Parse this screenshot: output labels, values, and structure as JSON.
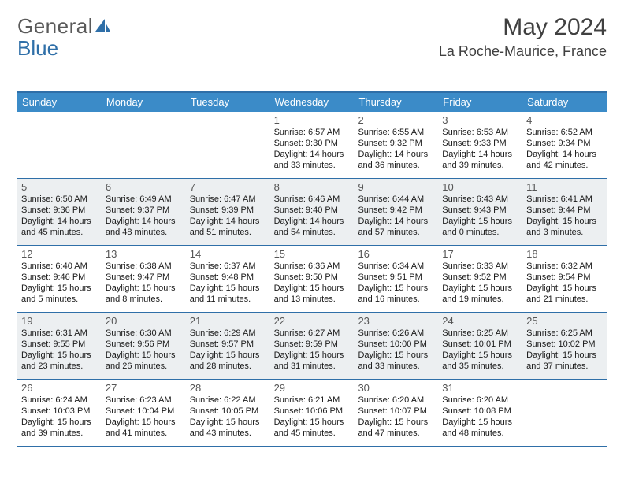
{
  "brand": {
    "part1": "General",
    "part2": "Blue"
  },
  "title": "May 2024",
  "location": "La Roche-Maurice, France",
  "colors": {
    "header_bg": "#3b8bc8",
    "border": "#2f6fa8",
    "shaded": "#eceff1",
    "text": "#1a1a1a",
    "daynum": "#555555",
    "brand_gray": "#5a5a5a",
    "brand_blue": "#2f6fa8"
  },
  "dow": [
    "Sunday",
    "Monday",
    "Tuesday",
    "Wednesday",
    "Thursday",
    "Friday",
    "Saturday"
  ],
  "weeks": [
    [
      {
        "n": "",
        "sr": "",
        "ss": "",
        "dl": ""
      },
      {
        "n": "",
        "sr": "",
        "ss": "",
        "dl": ""
      },
      {
        "n": "",
        "sr": "",
        "ss": "",
        "dl": ""
      },
      {
        "n": "1",
        "sr": "Sunrise: 6:57 AM",
        "ss": "Sunset: 9:30 PM",
        "dl": "Daylight: 14 hours and 33 minutes."
      },
      {
        "n": "2",
        "sr": "Sunrise: 6:55 AM",
        "ss": "Sunset: 9:32 PM",
        "dl": "Daylight: 14 hours and 36 minutes."
      },
      {
        "n": "3",
        "sr": "Sunrise: 6:53 AM",
        "ss": "Sunset: 9:33 PM",
        "dl": "Daylight: 14 hours and 39 minutes."
      },
      {
        "n": "4",
        "sr": "Sunrise: 6:52 AM",
        "ss": "Sunset: 9:34 PM",
        "dl": "Daylight: 14 hours and 42 minutes."
      }
    ],
    [
      {
        "n": "5",
        "sr": "Sunrise: 6:50 AM",
        "ss": "Sunset: 9:36 PM",
        "dl": "Daylight: 14 hours and 45 minutes."
      },
      {
        "n": "6",
        "sr": "Sunrise: 6:49 AM",
        "ss": "Sunset: 9:37 PM",
        "dl": "Daylight: 14 hours and 48 minutes."
      },
      {
        "n": "7",
        "sr": "Sunrise: 6:47 AM",
        "ss": "Sunset: 9:39 PM",
        "dl": "Daylight: 14 hours and 51 minutes."
      },
      {
        "n": "8",
        "sr": "Sunrise: 6:46 AM",
        "ss": "Sunset: 9:40 PM",
        "dl": "Daylight: 14 hours and 54 minutes."
      },
      {
        "n": "9",
        "sr": "Sunrise: 6:44 AM",
        "ss": "Sunset: 9:42 PM",
        "dl": "Daylight: 14 hours and 57 minutes."
      },
      {
        "n": "10",
        "sr": "Sunrise: 6:43 AM",
        "ss": "Sunset: 9:43 PM",
        "dl": "Daylight: 15 hours and 0 minutes."
      },
      {
        "n": "11",
        "sr": "Sunrise: 6:41 AM",
        "ss": "Sunset: 9:44 PM",
        "dl": "Daylight: 15 hours and 3 minutes."
      }
    ],
    [
      {
        "n": "12",
        "sr": "Sunrise: 6:40 AM",
        "ss": "Sunset: 9:46 PM",
        "dl": "Daylight: 15 hours and 5 minutes."
      },
      {
        "n": "13",
        "sr": "Sunrise: 6:38 AM",
        "ss": "Sunset: 9:47 PM",
        "dl": "Daylight: 15 hours and 8 minutes."
      },
      {
        "n": "14",
        "sr": "Sunrise: 6:37 AM",
        "ss": "Sunset: 9:48 PM",
        "dl": "Daylight: 15 hours and 11 minutes."
      },
      {
        "n": "15",
        "sr": "Sunrise: 6:36 AM",
        "ss": "Sunset: 9:50 PM",
        "dl": "Daylight: 15 hours and 13 minutes."
      },
      {
        "n": "16",
        "sr": "Sunrise: 6:34 AM",
        "ss": "Sunset: 9:51 PM",
        "dl": "Daylight: 15 hours and 16 minutes."
      },
      {
        "n": "17",
        "sr": "Sunrise: 6:33 AM",
        "ss": "Sunset: 9:52 PM",
        "dl": "Daylight: 15 hours and 19 minutes."
      },
      {
        "n": "18",
        "sr": "Sunrise: 6:32 AM",
        "ss": "Sunset: 9:54 PM",
        "dl": "Daylight: 15 hours and 21 minutes."
      }
    ],
    [
      {
        "n": "19",
        "sr": "Sunrise: 6:31 AM",
        "ss": "Sunset: 9:55 PM",
        "dl": "Daylight: 15 hours and 23 minutes."
      },
      {
        "n": "20",
        "sr": "Sunrise: 6:30 AM",
        "ss": "Sunset: 9:56 PM",
        "dl": "Daylight: 15 hours and 26 minutes."
      },
      {
        "n": "21",
        "sr": "Sunrise: 6:29 AM",
        "ss": "Sunset: 9:57 PM",
        "dl": "Daylight: 15 hours and 28 minutes."
      },
      {
        "n": "22",
        "sr": "Sunrise: 6:27 AM",
        "ss": "Sunset: 9:59 PM",
        "dl": "Daylight: 15 hours and 31 minutes."
      },
      {
        "n": "23",
        "sr": "Sunrise: 6:26 AM",
        "ss": "Sunset: 10:00 PM",
        "dl": "Daylight: 15 hours and 33 minutes."
      },
      {
        "n": "24",
        "sr": "Sunrise: 6:25 AM",
        "ss": "Sunset: 10:01 PM",
        "dl": "Daylight: 15 hours and 35 minutes."
      },
      {
        "n": "25",
        "sr": "Sunrise: 6:25 AM",
        "ss": "Sunset: 10:02 PM",
        "dl": "Daylight: 15 hours and 37 minutes."
      }
    ],
    [
      {
        "n": "26",
        "sr": "Sunrise: 6:24 AM",
        "ss": "Sunset: 10:03 PM",
        "dl": "Daylight: 15 hours and 39 minutes."
      },
      {
        "n": "27",
        "sr": "Sunrise: 6:23 AM",
        "ss": "Sunset: 10:04 PM",
        "dl": "Daylight: 15 hours and 41 minutes."
      },
      {
        "n": "28",
        "sr": "Sunrise: 6:22 AM",
        "ss": "Sunset: 10:05 PM",
        "dl": "Daylight: 15 hours and 43 minutes."
      },
      {
        "n": "29",
        "sr": "Sunrise: 6:21 AM",
        "ss": "Sunset: 10:06 PM",
        "dl": "Daylight: 15 hours and 45 minutes."
      },
      {
        "n": "30",
        "sr": "Sunrise: 6:20 AM",
        "ss": "Sunset: 10:07 PM",
        "dl": "Daylight: 15 hours and 47 minutes."
      },
      {
        "n": "31",
        "sr": "Sunrise: 6:20 AM",
        "ss": "Sunset: 10:08 PM",
        "dl": "Daylight: 15 hours and 48 minutes."
      },
      {
        "n": "",
        "sr": "",
        "ss": "",
        "dl": ""
      }
    ]
  ]
}
